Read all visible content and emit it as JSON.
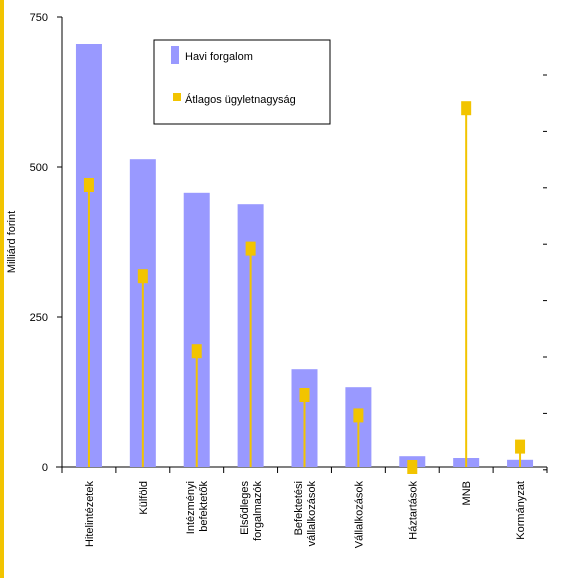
{
  "chart_data": {
    "type": "bar",
    "title": "",
    "ylabel": "Milliárd forint",
    "xlabel": "",
    "ylim": [
      0,
      750
    ],
    "yticks": [
      0,
      250,
      500,
      750
    ],
    "grid": false,
    "legend_position": "top-center",
    "categories": [
      [
        "Hitelintézetek"
      ],
      [
        "Külföld"
      ],
      [
        "Intézményi",
        "befektetők"
      ],
      [
        "Elsődleges",
        "forgalmazók"
      ],
      [
        "Befektetési",
        "vállalkozások"
      ],
      [
        "Vállalkozások"
      ],
      [
        "Háztartások"
      ],
      [
        "MNB"
      ],
      [
        "Kormányzat"
      ]
    ],
    "series": [
      {
        "name": "Havi forgalom",
        "kind": "bar",
        "color": "#9999ff",
        "values": [
          705,
          513,
          457,
          438,
          163,
          133,
          18,
          15,
          12
        ]
      },
      {
        "name": "Átlagos ügyletnagyság",
        "kind": "lollipop",
        "color": "#f2c400",
        "values": [
          470,
          318,
          193,
          364,
          120,
          86,
          0,
          598,
          34
        ]
      }
    ]
  }
}
